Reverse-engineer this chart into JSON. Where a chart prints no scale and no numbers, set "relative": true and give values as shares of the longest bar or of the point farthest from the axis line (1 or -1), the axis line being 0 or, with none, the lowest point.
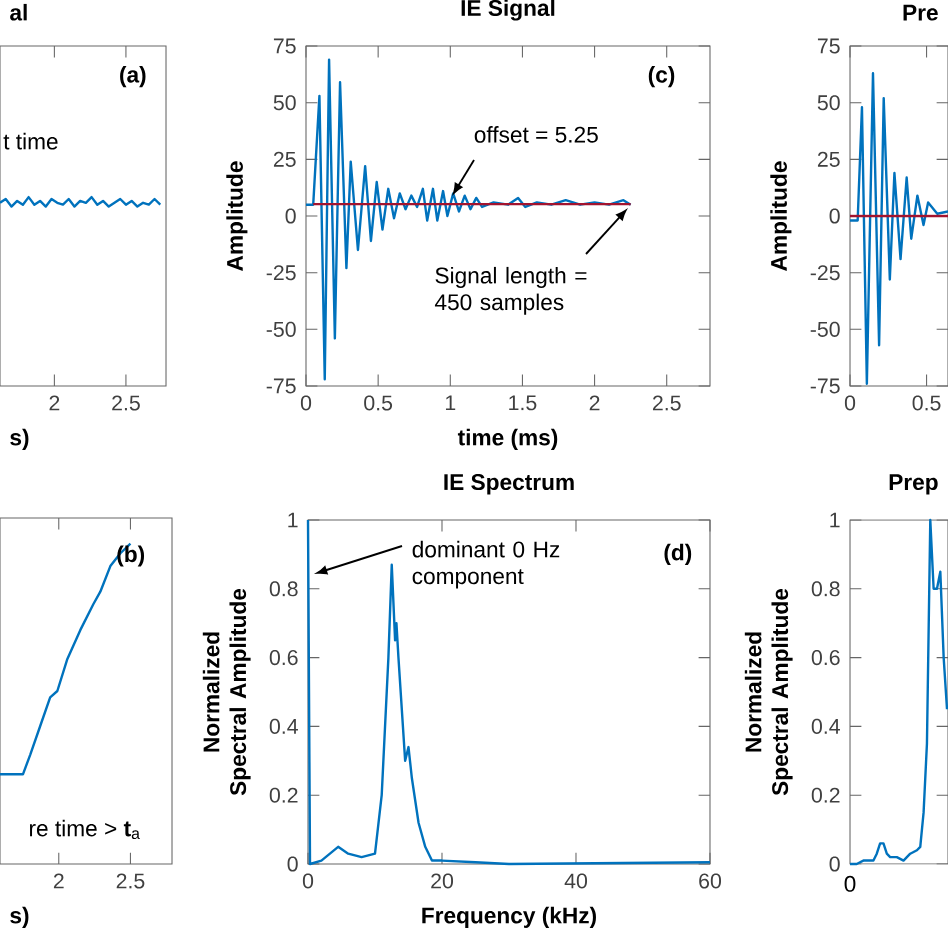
{
  "chart_data": [
    {
      "type": "line",
      "title": "al",
      "xlabel": "s)",
      "relative": true,
      "tick_labels": "x",
      "xlim": [
        1.62,
        2.78
      ],
      "xticks": [
        2,
        2.5
      ],
      "annotations": [
        "(a)",
        "t time"
      ],
      "series": [
        {
          "color": "#0072bd",
          "x": [
            1.62,
            1.66,
            1.7,
            1.74,
            1.78,
            1.82,
            1.86,
            1.9,
            1.94,
            1.98,
            2.02,
            2.06,
            2.1,
            2.14,
            2.18,
            2.22,
            2.26,
            2.3,
            2.34,
            2.38,
            2.42,
            2.46,
            2.5,
            2.54,
            2.58,
            2.62,
            2.66,
            2.7,
            2.74
          ],
          "values": [
            0.97,
            0.99,
            0.95,
            0.98,
            0.96,
            1.0,
            0.96,
            0.98,
            0.95,
            0.99,
            0.97,
            0.96,
            0.99,
            0.95,
            0.98,
            0.97,
            1.0,
            0.96,
            0.98,
            0.95,
            0.97,
            0.99,
            0.96,
            0.98,
            0.95,
            0.97,
            0.96,
            0.99,
            0.96
          ]
        }
      ]
    },
    {
      "type": "line",
      "title": "IE Signal",
      "xlabel": "time (ms)",
      "ylabel": "Amplitude",
      "xlim": [
        0,
        2.8
      ],
      "xticks": [
        0,
        0.5,
        1,
        1.5,
        2,
        2.5
      ],
      "ylim": [
        -75,
        75
      ],
      "yticks": [
        -75,
        -50,
        -25,
        0,
        25,
        50,
        75
      ],
      "annotations": [
        "(c)",
        "offset = 5.25",
        "Signal length = 450 samples"
      ],
      "series": [
        {
          "color": "#0072bd",
          "x": [
            0,
            0.05,
            0.093,
            0.13,
            0.16,
            0.2,
            0.236,
            0.28,
            0.31,
            0.36,
            0.41,
            0.45,
            0.49,
            0.53,
            0.57,
            0.61,
            0.65,
            0.69,
            0.73,
            0.77,
            0.81,
            0.84,
            0.88,
            0.91,
            0.95,
            0.98,
            1.02,
            1.06,
            1.1,
            1.14,
            1.18,
            1.22,
            1.3,
            1.4,
            1.47,
            1.52,
            1.6,
            1.7,
            1.8,
            1.9,
            2.0,
            2.1,
            2.2,
            2.25
          ],
          "values": [
            5,
            5,
            53,
            -72,
            69,
            -54,
            59,
            -23,
            24,
            -15,
            22,
            -11,
            15,
            -6,
            12,
            -1,
            10,
            3,
            9,
            4,
            12,
            -2,
            12,
            -2,
            11,
            0,
            10,
            2,
            9,
            3,
            8,
            4,
            6,
            5,
            8,
            4,
            6,
            5,
            7,
            5,
            6,
            5,
            7,
            5
          ]
        },
        {
          "color": "#a2142f",
          "x": [
            0.05,
            2.25
          ],
          "values": [
            5.25,
            5.25
          ]
        }
      ]
    },
    {
      "type": "line",
      "title": "Pre",
      "ylabel": "Amplitude",
      "xlim": [
        0,
        0.64
      ],
      "xticks": [
        0,
        0.5
      ],
      "ylim": [
        -75,
        75
      ],
      "yticks": [
        -75,
        -50,
        -25,
        0,
        25,
        50,
        75
      ],
      "series": [
        {
          "color": "#0072bd",
          "x": [
            0,
            0.05,
            0.078,
            0.11,
            0.15,
            0.19,
            0.22,
            0.26,
            0.29,
            0.33,
            0.37,
            0.4,
            0.44,
            0.48,
            0.51,
            0.57,
            0.64
          ],
          "values": [
            -2,
            -2,
            48,
            -74,
            63,
            -57,
            52,
            -28,
            19,
            -19,
            17,
            -10,
            9,
            -4,
            6,
            1,
            2
          ]
        },
        {
          "color": "#a2142f",
          "x": [
            0,
            0.64
          ],
          "values": [
            0,
            0
          ]
        }
      ]
    },
    {
      "type": "line",
      "xlabel": "s)",
      "relative": true,
      "tick_labels": "x",
      "xlim": [
        1.59,
        2.79
      ],
      "xticks": [
        2,
        2.5
      ],
      "annotations": [
        "(b)",
        "re time > **t**$_{a}$"
      ],
      "series": [
        {
          "color": "#0072bd",
          "x": [
            1.59,
            1.75,
            1.8,
            1.87,
            1.94,
            1.99,
            2.06,
            2.15,
            2.24,
            2.29,
            2.36,
            2.43,
            2.5
          ],
          "values": [
            0.28,
            0.28,
            0.34,
            0.43,
            0.52,
            0.54,
            0.64,
            0.73,
            0.81,
            0.85,
            0.93,
            0.97,
            1.0
          ]
        }
      ]
    },
    {
      "type": "line",
      "title": "IE Spectrum",
      "xlabel": "Frequency (kHz)",
      "ylabel": "Normalized Spectral Amplitude",
      "xlim": [
        0,
        60
      ],
      "xticks": [
        0,
        20,
        40,
        60
      ],
      "ylim": [
        0,
        1
      ],
      "yticks": [
        0,
        0.2,
        0.4,
        0.6,
        0.8,
        1
      ],
      "annotations": [
        "(d)",
        "dominant 0 Hz component"
      ],
      "series": [
        {
          "color": "#0072bd",
          "x": [
            0,
            0.3,
            2,
            4.5,
            6,
            8,
            10,
            11,
            12,
            12.5,
            13,
            13.2,
            13.5,
            14.5,
            15,
            15.5,
            16.5,
            17.5,
            18.5,
            20,
            25,
            30,
            60
          ],
          "values": [
            1,
            0,
            0.01,
            0.05,
            0.03,
            0.02,
            0.03,
            0.2,
            0.6,
            0.87,
            0.65,
            0.7,
            0.6,
            0.3,
            0.34,
            0.25,
            0.12,
            0.05,
            0.01,
            0.01,
            0.005,
            0,
            0.005
          ]
        }
      ]
    },
    {
      "type": "line",
      "title": "Prep",
      "ylabel": "Normalized Spectral Amplitude",
      "ylim": [
        0,
        1
      ],
      "yticks": [
        0,
        0.2,
        0.4,
        0.6,
        0.8,
        1
      ],
      "annotations": [
        "0"
      ],
      "categories": [
        null,
        null,
        null,
        null,
        null,
        null,
        null,
        null,
        null,
        null,
        null,
        null,
        null,
        null,
        null,
        null,
        null,
        null,
        null,
        null,
        null,
        null,
        null,
        null,
        null,
        null,
        null,
        null,
        null,
        null
      ],
      "series": [
        {
          "color": "#0072bd",
          "values": [
            0,
            0,
            0,
            0.005,
            0.01,
            0.01,
            0.01,
            0.01,
            0.03,
            0.06,
            0.06,
            0.03,
            0.02,
            0.02,
            0.02,
            0.015,
            0.01,
            0.02,
            0.03,
            0.035,
            0.04,
            0.05,
            0.15,
            0.35,
            1.0,
            0.8,
            0.8,
            0.85,
            0.6,
            0.45
          ]
        }
      ]
    }
  ]
}
